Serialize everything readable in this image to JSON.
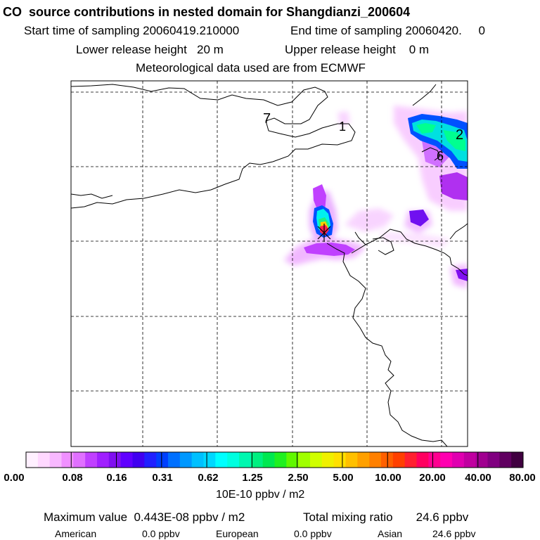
{
  "header": {
    "title": "CO  source contributions in nested domain for Shangdianzi_200604",
    "start_label": "Start time of sampling 20060419.210000",
    "end_label": "End time of sampling 20060420.     0",
    "lower_label": "Lower release height   20 m",
    "upper_label": "Upper release height    0 m",
    "met_label": "Meteorological data used are from ECMWF"
  },
  "map": {
    "region_labels": [
      "7",
      "1",
      "2",
      "6"
    ],
    "station_marker": "Shangdianzi",
    "grid": "dashed"
  },
  "colorbar": {
    "unit": "10E-10 ppbv / m2",
    "ticks": [
      "0.00",
      "0.08",
      "0.16",
      "0.31",
      "0.62",
      "1.25",
      "2.50",
      "5.00",
      "10.00",
      "20.00",
      "40.00",
      "80.00"
    ],
    "colors": [
      "#fff0ff",
      "#ffd8ff",
      "#f8b8ff",
      "#f090ff",
      "#e070ff",
      "#c040ff",
      "#a020ff",
      "#8010f0",
      "#6000ff",
      "#4000f0",
      "#2020ff",
      "#0040ff",
      "#0070ff",
      "#0098ff",
      "#00c0ff",
      "#00d8ff",
      "#00ffff",
      "#00ffe0",
      "#00f8b0",
      "#00f080",
      "#00e850",
      "#20f020",
      "#60f800",
      "#a0ff00",
      "#d0ff00",
      "#f0f000",
      "#ffe000",
      "#ffc000",
      "#ffa000",
      "#ff8000",
      "#ff6000",
      "#ff4000",
      "#ff2030",
      "#ff0060",
      "#ff0090",
      "#ff00b0",
      "#e000b0",
      "#c000a0",
      "#a00090",
      "#800080",
      "#600060",
      "#400040"
    ]
  },
  "summary": {
    "max_label": "Maximum value  0.443E-08 ppbv / m2",
    "total_label": "Total mixing ratio       24.6 ppbv",
    "regions": [
      {
        "name": "American",
        "value": "0.0 ppbv"
      },
      {
        "name": "European",
        "value": "0.0 ppbv"
      },
      {
        "name": "Asian",
        "value": "24.6 ppbv"
      }
    ]
  }
}
